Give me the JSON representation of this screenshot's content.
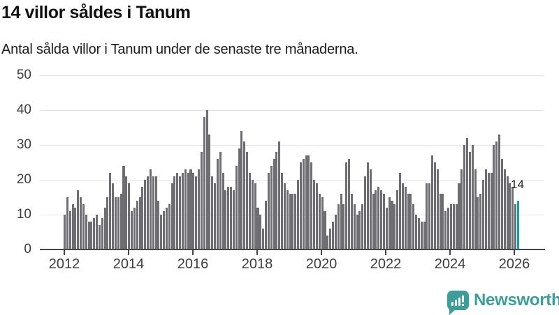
{
  "chart_data": {
    "type": "bar",
    "title": "14 villor såldes i Tanum",
    "subtitle": "Antal sålda villor i Tanum under de senaste tre månaderna.",
    "x_start": "2012-01",
    "frequency": "monthly",
    "xlabel": "",
    "ylabel": "",
    "ylim": [
      0,
      50
    ],
    "yticks": [
      0,
      10,
      20,
      30,
      40,
      50
    ],
    "xtick_labels": [
      "2012",
      "2014",
      "2016",
      "2018",
      "2020",
      "2022",
      "2024",
      "2026"
    ],
    "grid": "horizontal",
    "legend": "none",
    "values": [
      10,
      15,
      11,
      13,
      12,
      17,
      15,
      13,
      10,
      8,
      8,
      9,
      10,
      7,
      9,
      12,
      15,
      22,
      19,
      15,
      15,
      16,
      24,
      21,
      19,
      11,
      12,
      14,
      15,
      18,
      20,
      21,
      23,
      21,
      21,
      14,
      10,
      11,
      12,
      13,
      19,
      21,
      22,
      21,
      22,
      23,
      22,
      23,
      22,
      21,
      23,
      28,
      38,
      40,
      33,
      21,
      19,
      26,
      28,
      22,
      17,
      18,
      18,
      17,
      24,
      29,
      34,
      31,
      28,
      22,
      20,
      19,
      12,
      10,
      6,
      14,
      22,
      24,
      26,
      28,
      31,
      22,
      19,
      17,
      16,
      16,
      16,
      20,
      25,
      26,
      27,
      27,
      25,
      20,
      19,
      16,
      15,
      11,
      4,
      6,
      8,
      10,
      13,
      16,
      13,
      25,
      26,
      16,
      13,
      10,
      11,
      13,
      21,
      25,
      23,
      16,
      17,
      18,
      17,
      16,
      12,
      15,
      14,
      13,
      17,
      22,
      19,
      18,
      16,
      16,
      13,
      10,
      9,
      8,
      8,
      19,
      19,
      27,
      25,
      23,
      16,
      16,
      11,
      12,
      13,
      13,
      13,
      19,
      23,
      30,
      32,
      28,
      30,
      23,
      15,
      16,
      20,
      23,
      22,
      22,
      30,
      31,
      33,
      26,
      23,
      21,
      19,
      18,
      13,
      14
    ],
    "highlight": {
      "index": 169,
      "value": 14,
      "label": "14"
    },
    "colors": {
      "bar": "#6d6d72",
      "highlight": "#12a2a2",
      "grid": "#e3e3e3",
      "axis": "#45454a",
      "tick_text": "#3c3c3c"
    }
  },
  "footer": {
    "brand": "Newsworthy",
    "brand_color": "#3e9d98",
    "icon": "bar-chart-speech-bubble-icon"
  }
}
